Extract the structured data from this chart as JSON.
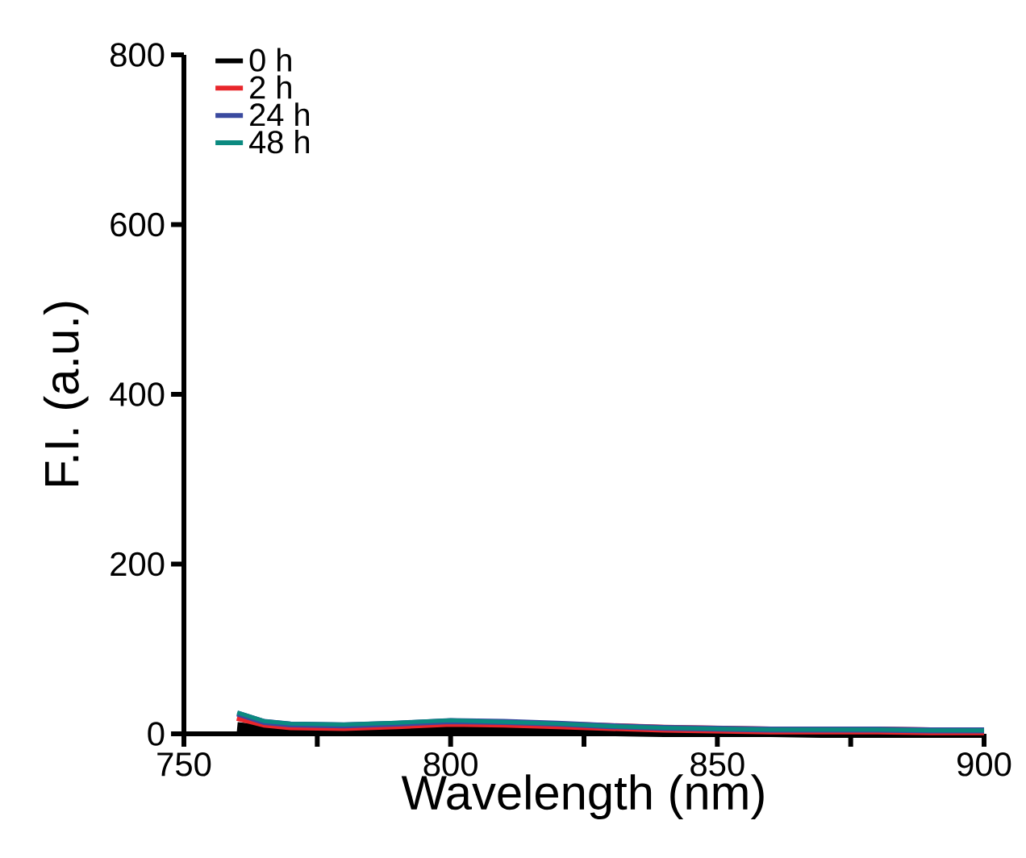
{
  "chart_data": {
    "type": "line",
    "xlabel": "Wavelength (nm)",
    "ylabel": "F.I. (a.u.)",
    "xlim": [
      750,
      900
    ],
    "ylim": [
      0,
      800
    ],
    "xticks": [
      750,
      {
        "value": 775,
        "label": null
      },
      800,
      {
        "value": 825,
        "label": null
      },
      850,
      {
        "value": 875,
        "label": null
      },
      900
    ],
    "yticks": [
      0,
      200,
      400,
      600,
      800
    ],
    "legend": "top left",
    "grid": false,
    "marker": "none",
    "line_style": "solid",
    "series": [
      {
        "name": "0 h",
        "color": "#000000",
        "x": [
          760,
          765,
          770,
          780,
          790,
          800,
          810,
          820,
          830,
          840,
          850,
          860,
          870,
          880,
          890,
          900
        ],
        "values": [
          8,
          5,
          4,
          3,
          4,
          6,
          5,
          4,
          3,
          2,
          2,
          2,
          1,
          1,
          1,
          1
        ]
      },
      {
        "name": "2 h",
        "color": "#e8262b",
        "x": [
          760,
          765,
          770,
          780,
          790,
          800,
          810,
          820,
          830,
          840,
          850,
          860,
          870,
          880,
          890,
          900
        ],
        "values": [
          20,
          12,
          9,
          8,
          10,
          13,
          12,
          10,
          8,
          6,
          5,
          4,
          4,
          4,
          3,
          3
        ]
      },
      {
        "name": "24 h",
        "color": "#3a4a9f",
        "x": [
          760,
          765,
          770,
          780,
          790,
          800,
          810,
          820,
          830,
          840,
          850,
          860,
          870,
          880,
          890,
          900
        ],
        "values": [
          24,
          14,
          11,
          10,
          12,
          15,
          14,
          12,
          9,
          7,
          6,
          5,
          5,
          5,
          4,
          4
        ]
      },
      {
        "name": "48 h",
        "color": "#0b8a80",
        "x": [
          760,
          765,
          770,
          780,
          790,
          800,
          810,
          820,
          830,
          840,
          850,
          860,
          870,
          880,
          890,
          900
        ],
        "values": [
          25,
          15,
          12,
          11,
          13,
          16,
          14,
          12,
          9,
          7,
          6,
          5,
          5,
          5,
          4,
          4
        ]
      }
    ]
  }
}
